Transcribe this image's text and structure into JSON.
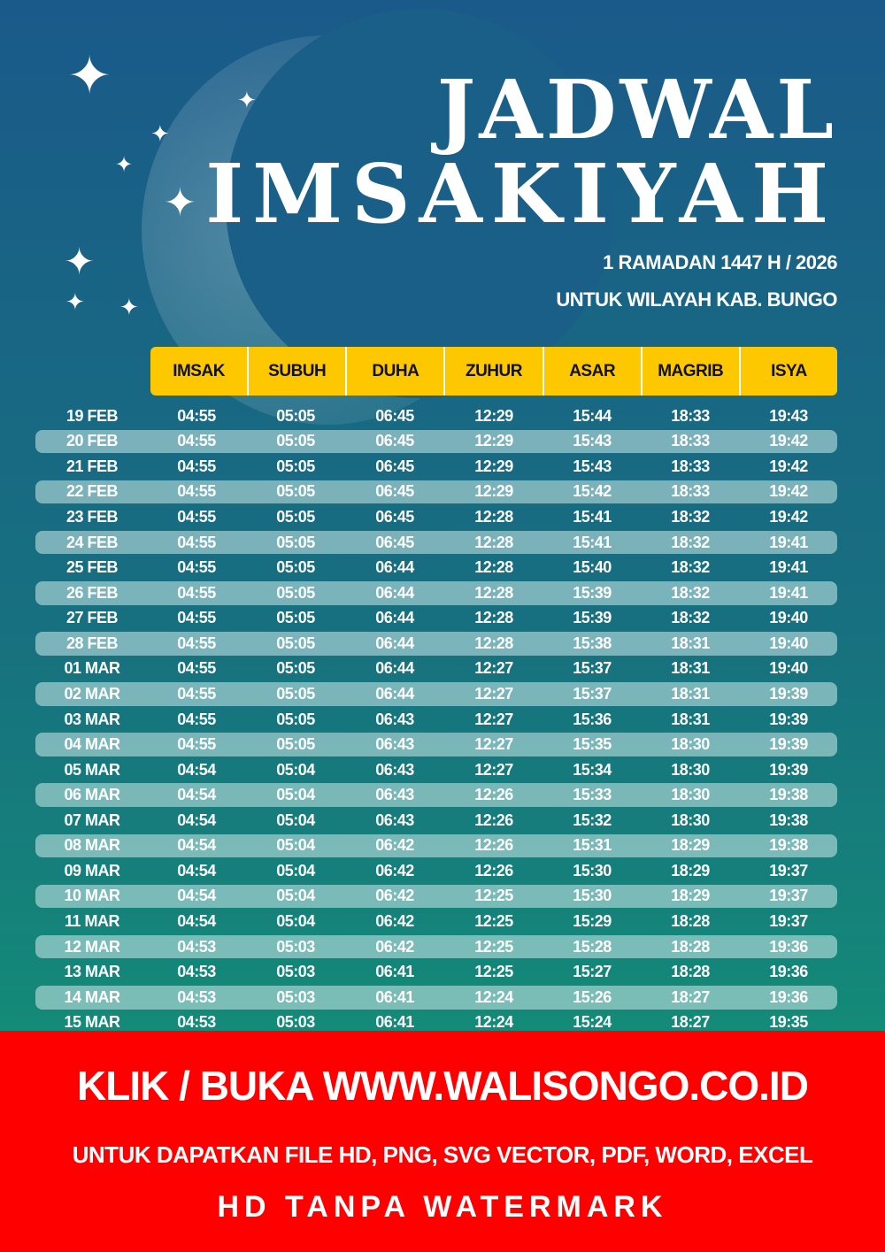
{
  "title": {
    "line1": "JADWAL",
    "line2": "IMSAKIYAH"
  },
  "subtitle": {
    "line1": "1 RAMADAN 1447 H / 2026",
    "line2": "UNTUK WILAYAH KAB. BUNGO"
  },
  "colors": {
    "header": "#fdc800",
    "banner": "#ff0000"
  },
  "columns": [
    "IMSAK",
    "SUBUH",
    "DUHA",
    "ZUHUR",
    "ASAR",
    "MAGRIB",
    "ISYA"
  ],
  "rows": [
    [
      "19 FEB",
      "04:55",
      "05:05",
      "06:45",
      "12:29",
      "15:44",
      "18:33",
      "19:43"
    ],
    [
      "20 FEB",
      "04:55",
      "05:05",
      "06:45",
      "12:29",
      "15:43",
      "18:33",
      "19:42"
    ],
    [
      "21 FEB",
      "04:55",
      "05:05",
      "06:45",
      "12:29",
      "15:43",
      "18:33",
      "19:42"
    ],
    [
      "22 FEB",
      "04:55",
      "05:05",
      "06:45",
      "12:29",
      "15:42",
      "18:33",
      "19:42"
    ],
    [
      "23 FEB",
      "04:55",
      "05:05",
      "06:45",
      "12:28",
      "15:41",
      "18:32",
      "19:42"
    ],
    [
      "24 FEB",
      "04:55",
      "05:05",
      "06:45",
      "12:28",
      "15:41",
      "18:32",
      "19:41"
    ],
    [
      "25 FEB",
      "04:55",
      "05:05",
      "06:44",
      "12:28",
      "15:40",
      "18:32",
      "19:41"
    ],
    [
      "26 FEB",
      "04:55",
      "05:05",
      "06:44",
      "12:28",
      "15:39",
      "18:32",
      "19:41"
    ],
    [
      "27 FEB",
      "04:55",
      "05:05",
      "06:44",
      "12:28",
      "15:39",
      "18:32",
      "19:40"
    ],
    [
      "28 FEB",
      "04:55",
      "05:05",
      "06:44",
      "12:28",
      "15:38",
      "18:31",
      "19:40"
    ],
    [
      "01 MAR",
      "04:55",
      "05:05",
      "06:44",
      "12:27",
      "15:37",
      "18:31",
      "19:40"
    ],
    [
      "02 MAR",
      "04:55",
      "05:05",
      "06:44",
      "12:27",
      "15:37",
      "18:31",
      "19:39"
    ],
    [
      "03 MAR",
      "04:55",
      "05:05",
      "06:43",
      "12:27",
      "15:36",
      "18:31",
      "19:39"
    ],
    [
      "04 MAR",
      "04:55",
      "05:05",
      "06:43",
      "12:27",
      "15:35",
      "18:30",
      "19:39"
    ],
    [
      "05 MAR",
      "04:54",
      "05:04",
      "06:43",
      "12:27",
      "15:34",
      "18:30",
      "19:39"
    ],
    [
      "06 MAR",
      "04:54",
      "05:04",
      "06:43",
      "12:26",
      "15:33",
      "18:30",
      "19:38"
    ],
    [
      "07 MAR",
      "04:54",
      "05:04",
      "06:43",
      "12:26",
      "15:32",
      "18:30",
      "19:38"
    ],
    [
      "08 MAR",
      "04:54",
      "05:04",
      "06:42",
      "12:26",
      "15:31",
      "18:29",
      "19:38"
    ],
    [
      "09 MAR",
      "04:54",
      "05:04",
      "06:42",
      "12:26",
      "15:30",
      "18:29",
      "19:37"
    ],
    [
      "10 MAR",
      "04:54",
      "05:04",
      "06:42",
      "12:25",
      "15:30",
      "18:29",
      "19:37"
    ],
    [
      "11 MAR",
      "04:54",
      "05:04",
      "06:42",
      "12:25",
      "15:29",
      "18:28",
      "19:37"
    ],
    [
      "12 MAR",
      "04:53",
      "05:03",
      "06:42",
      "12:25",
      "15:28",
      "18:28",
      "19:36"
    ],
    [
      "13 MAR",
      "04:53",
      "05:03",
      "06:41",
      "12:25",
      "15:27",
      "18:28",
      "19:36"
    ],
    [
      "14 MAR",
      "04:53",
      "05:03",
      "06:41",
      "12:24",
      "15:26",
      "18:27",
      "19:36"
    ],
    [
      "15 MAR",
      "04:53",
      "05:03",
      "06:41",
      "12:24",
      "15:24",
      "18:27",
      "19:35"
    ]
  ],
  "banner": {
    "line1": "KLIK / BUKA WWW.WALISONGO.CO.ID",
    "line2": "UNTUK DAPATKAN FILE HD, PNG, SVG VECTOR, PDF, WORD, EXCEL",
    "line3": "HD TANPA WATERMARK"
  }
}
